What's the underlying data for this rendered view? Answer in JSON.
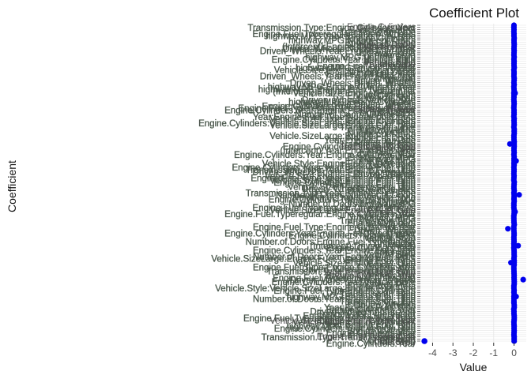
{
  "chart_data": {
    "type": "scatter",
    "title": "Coefficient Plot",
    "xlabel": "Value",
    "ylabel": "Coefficient",
    "x_ticks": [
      -4,
      -3,
      -2,
      -1,
      0
    ],
    "x_tick_labels": [
      "-4",
      "-3",
      "-2",
      "-1",
      "0"
    ],
    "xlim": [
      -4.6,
      0.6
    ],
    "coefficient_labels_readable": [
      "Engine.Cylinders",
      "Engine.Cylinders:Year",
      "Number.of.Doors",
      "highway.MPG",
      "Vehicle.Style",
      "Driven_Wheels",
      "Transmission.Type",
      "Engine.Fuel.Type",
      "Year:Engine.Fuel.Type",
      "Vehicle.Size",
      "Vehicle.SizeLarge:Engine.Fuel.Type",
      "Engine.Fuel.Typeregular",
      "(Intercept)"
    ],
    "coefficients": [
      {
        "label": "Engine.Cylinders",
        "value": 0.02
      },
      {
        "label": "Engine.Cylinders:Year",
        "value": 0.0
      },
      {
        "label": "Number.of.Doors",
        "value": 0.01
      },
      {
        "label": "highway.MPG",
        "value": 0.0
      },
      {
        "label": "Vehicle.Style",
        "value": 0.05
      },
      {
        "label": "Vehicle.Style",
        "value": -0.03
      },
      {
        "label": "Driven_Wheels",
        "value": 0.03
      },
      {
        "label": "Driven_Wheels",
        "value": -0.2
      },
      {
        "label": "Transmission.Type",
        "value": 0.1
      },
      {
        "label": "Engine.Fuel.Type",
        "value": 0.0
      },
      {
        "label": "Engine.Fuel.Type",
        "value": 0.25
      },
      {
        "label": "Year:Engine.Fuel.Type",
        "value": 0.05
      },
      {
        "label": "Year:Engine.Fuel.Type",
        "value": -0.3
      },
      {
        "label": "Vehicle.Size",
        "value": 0.2
      },
      {
        "label": "Vehicle.SizeLarge:Engine.Fuel.Type",
        "value": -0.15
      },
      {
        "label": "Vehicle.SizeLarge:Engine.Fuel.Type",
        "value": 0.45
      },
      {
        "label": "Engine.Fuel.Typeregular",
        "value": 0.1
      },
      {
        "label": "(Intercept)",
        "value": -4.4
      }
    ],
    "grid": true,
    "legend": "none",
    "point_color": "#0000ee",
    "label_color": "#555555"
  }
}
